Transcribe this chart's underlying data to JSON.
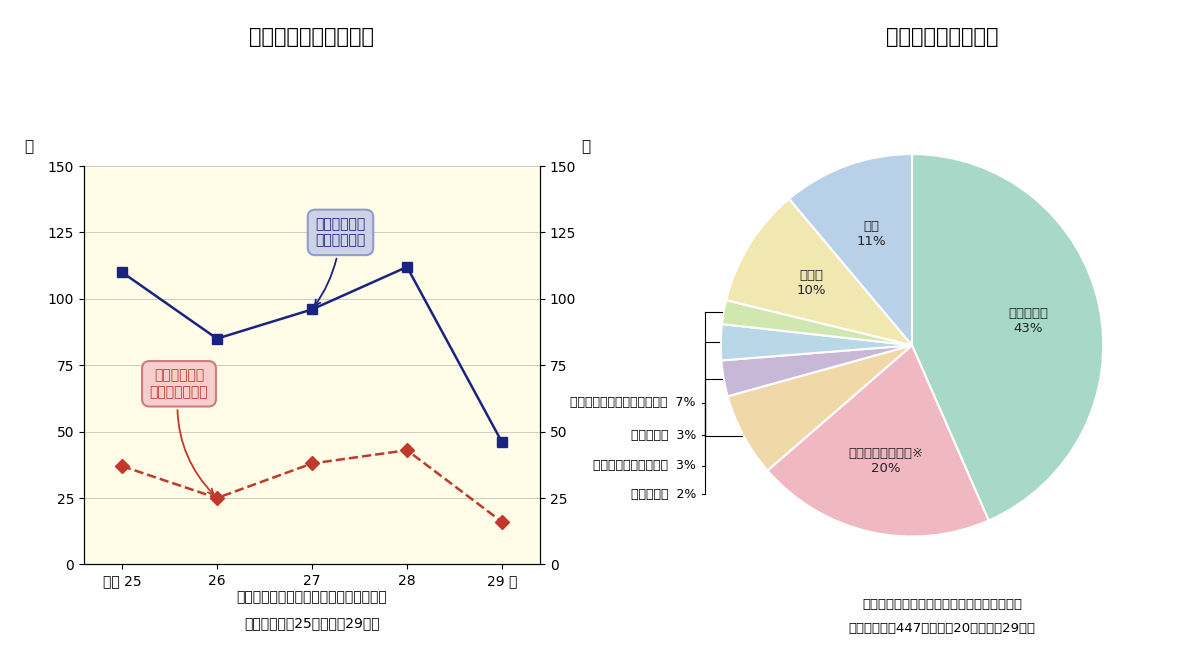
{
  "left_title": "キノコ食中毒発生状況",
  "right_title": "キノコ食中毒の原因",
  "line_years": [
    "平成 25",
    "26",
    "27",
    "28",
    "29 年"
  ],
  "patients": [
    110,
    85,
    96,
    112,
    46
  ],
  "incidents": [
    37,
    25,
    38,
    43,
    16
  ],
  "patients_color": "#1a237e",
  "incidents_color": "#c0392b",
  "chart_bg": "#fffde7",
  "ylim": [
    0,
    150
  ],
  "yticks": [
    0,
    25,
    50,
    75,
    100,
    125,
    150
  ],
  "ylabel_left": "件",
  "ylabel_right": "人",
  "left_caption_line1": "図１　キノコ食中毒件数と食中毒患者数",
  "left_caption_line2": "（全国　平成25年～平成29年）",
  "bubble_patients_text": "キノコ食中毒\n患者数（人）",
  "bubble_incidents_text": "キノコ食中毒\n発生件数（件）",
  "pie_values": [
    43,
    20,
    7,
    3,
    3,
    2,
    10,
    11
  ],
  "pie_colors": [
    "#a8d8c8",
    "#f0b8c0",
    "#f0d8a8",
    "#c8b8d8",
    "#b8d8e8",
    "#d0e8b0",
    "#f0e8b0",
    "#b8d0e8"
  ],
  "pie_inside_labels": [
    "ツキヨタケ\n43%",
    "クサウラベニタケ※\n20%",
    "",
    "",
    "",
    "",
    "その他\n10%",
    "不明\n11%"
  ],
  "pie_outside_labels": [
    "テングタケ・イボテングタケ  7%",
    "ドクササコ  3%",
    "オオシロカラカサタケ  3%",
    "カキシメジ  2%"
  ],
  "pie_outside_indices": [
    2,
    3,
    4,
    5
  ],
  "right_caption_line1": "図２　キノコ食中毒のキノコ種類別原因割合",
  "right_caption_line2": "（全国　総数447件　平成20年～平成29年）"
}
